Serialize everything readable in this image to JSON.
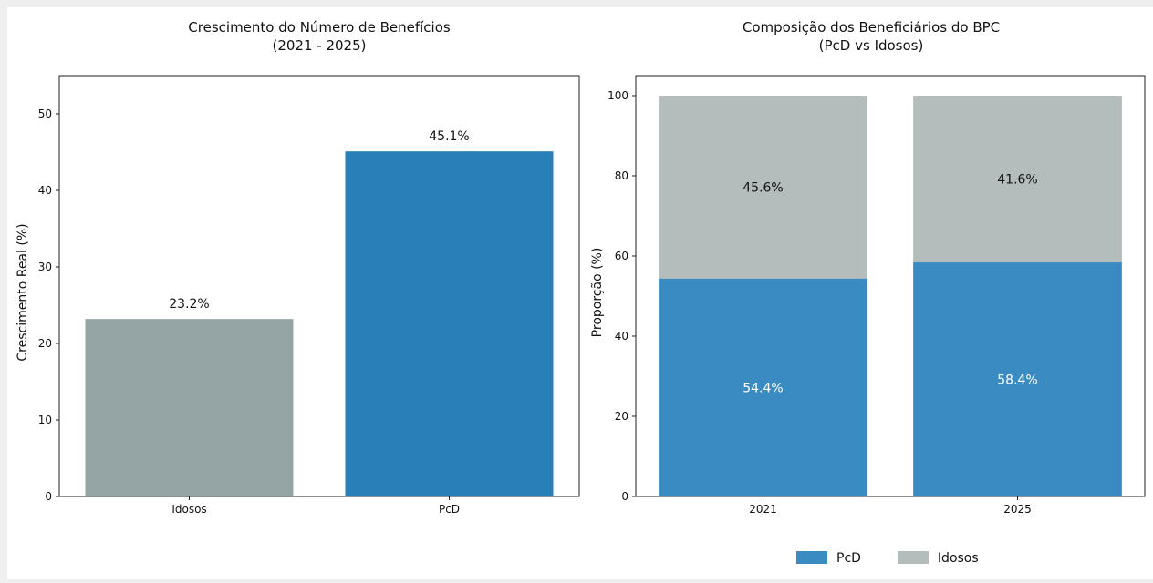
{
  "chart_data": [
    {
      "type": "bar",
      "title": "Crescimento do Número de Benefícios",
      "subtitle": "(2021 - 2025)",
      "xlabel": "",
      "ylabel": "Crescimento Real (%)",
      "categories": [
        "Idosos",
        "PcD"
      ],
      "values": [
        23.2,
        45.1
      ],
      "value_labels": [
        "23.2%",
        "45.1%"
      ],
      "colors": [
        "#95a5a6",
        "#2980b9"
      ],
      "ylim": [
        0,
        55
      ],
      "yticks": [
        0,
        10,
        20,
        30,
        40,
        50
      ],
      "grid": false
    },
    {
      "type": "bar",
      "stacked": true,
      "title": "Composição dos Beneficiários do BPC",
      "subtitle": "(PcD vs Idosos)",
      "xlabel": "",
      "ylabel": "Proporção (%)",
      "categories": [
        "2021",
        "2025"
      ],
      "series": [
        {
          "name": "PcD",
          "values": [
            54.4,
            58.4
          ],
          "value_labels": [
            "54.4%",
            "58.4%"
          ],
          "color": "#3a8bc2"
        },
        {
          "name": "Idosos",
          "values": [
            45.6,
            41.6
          ],
          "value_labels": [
            "45.6%",
            "41.6%"
          ],
          "color": "#b4bcbc"
        }
      ],
      "ylim": [
        0,
        105
      ],
      "yticks": [
        0,
        20,
        40,
        60,
        80,
        100
      ],
      "legend": "bottom-center",
      "grid": false
    }
  ]
}
